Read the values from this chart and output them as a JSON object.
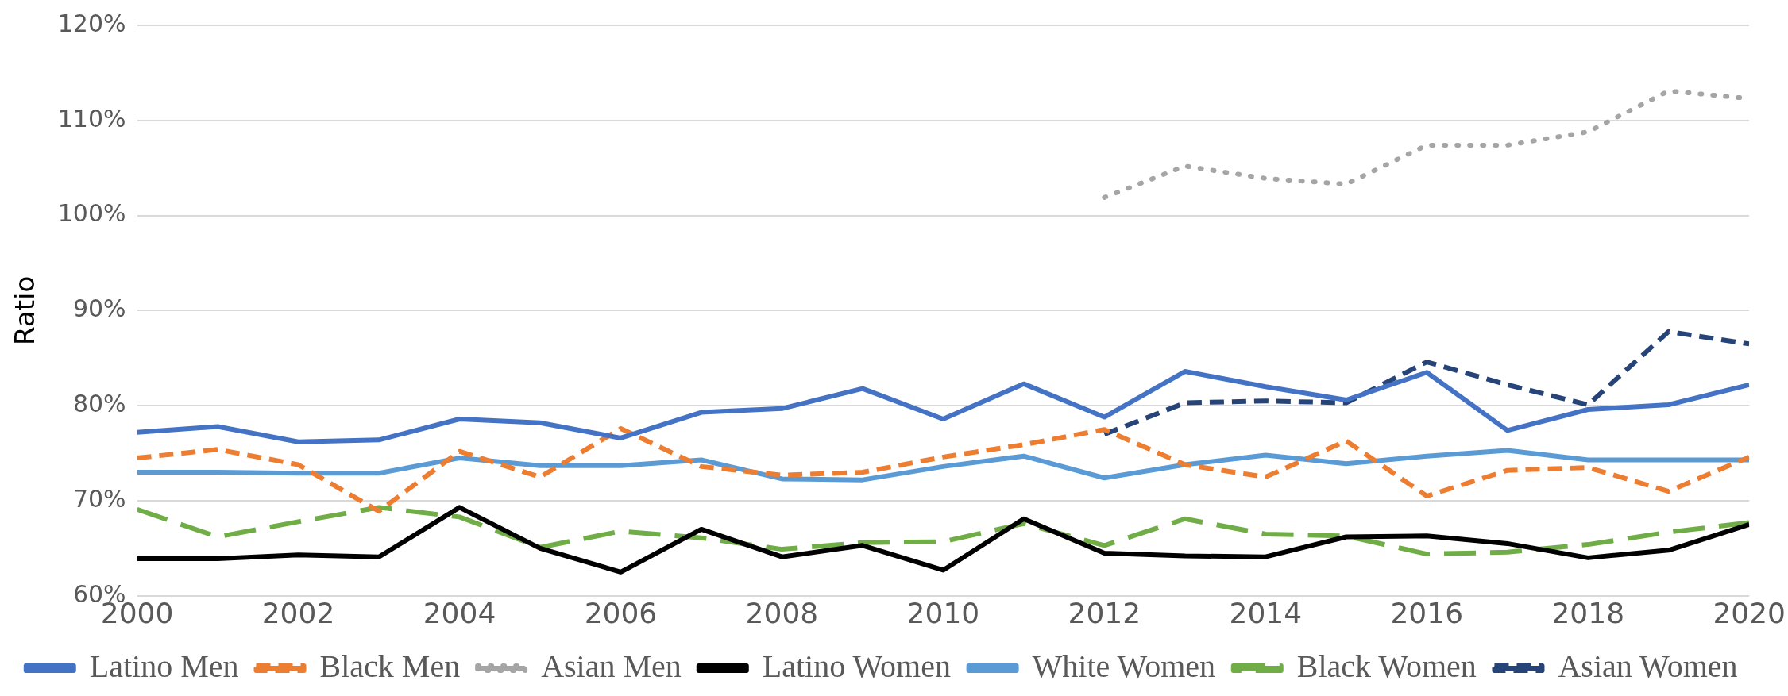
{
  "chart_data": {
    "type": "line",
    "ylabel": "Ratio",
    "x": [
      2000,
      2001,
      2002,
      2003,
      2004,
      2005,
      2006,
      2007,
      2008,
      2009,
      2010,
      2011,
      2012,
      2013,
      2014,
      2015,
      2016,
      2017,
      2018,
      2019,
      2020
    ],
    "xlim": [
      2000,
      2020
    ],
    "xticks": [
      2000,
      2002,
      2004,
      2006,
      2008,
      2010,
      2012,
      2014,
      2016,
      2018,
      2020
    ],
    "ylim": [
      60,
      120
    ],
    "yticks": [
      {
        "value": 60,
        "label": "60%"
      },
      {
        "value": 70,
        "label": "70%"
      },
      {
        "value": 80,
        "label": "80%"
      },
      {
        "value": 90,
        "label": "90%"
      },
      {
        "value": 100,
        "label": "100%"
      },
      {
        "value": 110,
        "label": "110%"
      },
      {
        "value": 120,
        "label": "120%"
      }
    ],
    "grid": "y",
    "legend": "bottom",
    "marker": "none",
    "series": [
      {
        "name": "Latino Men",
        "color": "#4472c4",
        "line_style": "solid",
        "values": [
          77.2,
          77.8,
          76.2,
          76.4,
          78.6,
          78.2,
          76.6,
          79.3,
          79.7,
          81.8,
          78.6,
          82.3,
          78.8,
          83.6,
          82.0,
          80.6,
          83.5,
          77.4,
          79.6,
          80.1,
          82.2
        ]
      },
      {
        "name": "Black Men",
        "color": "#ed7d31",
        "line_style": "dashed",
        "values": [
          74.5,
          75.4,
          73.8,
          68.9,
          75.2,
          72.5,
          77.6,
          73.6,
          72.7,
          73.0,
          74.6,
          75.9,
          77.5,
          73.8,
          72.5,
          76.3,
          70.5,
          73.2,
          73.5,
          71.0,
          74.6
        ]
      },
      {
        "name": "Asian Men",
        "color": "#a5a5a5",
        "line_style": "dotted",
        "values": [
          null,
          null,
          null,
          null,
          null,
          null,
          null,
          null,
          null,
          null,
          null,
          null,
          101.9,
          105.2,
          103.9,
          103.3,
          107.4,
          107.4,
          108.8,
          113.1,
          112.3
        ]
      },
      {
        "name": "Latino Women",
        "color": "#000000",
        "line_style": "solid",
        "values": [
          63.9,
          63.9,
          64.3,
          64.1,
          69.3,
          65.0,
          62.5,
          67.0,
          64.1,
          65.3,
          62.7,
          68.1,
          64.5,
          64.2,
          64.1,
          66.2,
          66.3,
          65.5,
          64.0,
          64.8,
          67.5
        ]
      },
      {
        "name": "White Women",
        "color": "#5b9bd5",
        "line_style": "solid",
        "values": [
          73.0,
          73.0,
          72.9,
          72.9,
          74.5,
          73.7,
          73.7,
          74.3,
          72.3,
          72.2,
          73.6,
          74.7,
          72.4,
          73.8,
          74.8,
          73.9,
          74.7,
          75.3,
          74.3,
          74.3,
          74.3
        ]
      },
      {
        "name": "Black Women",
        "color": "#70ad47",
        "line_style": "longdash",
        "values": [
          69.1,
          66.2,
          67.8,
          69.3,
          68.3,
          65.1,
          66.8,
          66.1,
          64.9,
          65.6,
          65.7,
          67.6,
          65.3,
          68.1,
          66.5,
          66.3,
          64.4,
          64.6,
          65.4,
          66.7,
          67.7
        ]
      },
      {
        "name": "Asian Women",
        "color": "#264478",
        "line_style": "dashed",
        "values": [
          null,
          null,
          null,
          null,
          null,
          null,
          null,
          null,
          null,
          null,
          null,
          null,
          77.0,
          80.3,
          80.5,
          80.3,
          84.6,
          82.2,
          80.1,
          87.8,
          86.5
        ]
      }
    ]
  }
}
